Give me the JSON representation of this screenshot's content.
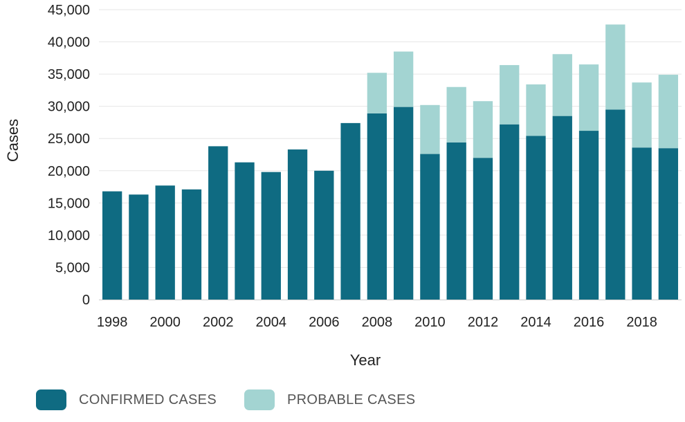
{
  "chart_data": {
    "type": "bar",
    "stacked": true,
    "xlabel": "Year",
    "ylabel": "Cases",
    "ylim": [
      0,
      45000
    ],
    "yticks": [
      0,
      5000,
      10000,
      15000,
      20000,
      25000,
      30000,
      35000,
      40000,
      45000
    ],
    "ytick_labels": [
      "0",
      "5,000",
      "10,000",
      "15,000",
      "20,000",
      "25,000",
      "30,000",
      "35,000",
      "40,000",
      "45,000"
    ],
    "categories": [
      1998,
      1999,
      2000,
      2001,
      2002,
      2003,
      2004,
      2005,
      2006,
      2007,
      2008,
      2009,
      2010,
      2011,
      2012,
      2013,
      2014,
      2015,
      2016,
      2017,
      2018,
      2019
    ],
    "xtick_labels": [
      "1998",
      "2000",
      "2002",
      "2004",
      "2006",
      "2008",
      "2010",
      "2012",
      "2014",
      "2016",
      "2018"
    ],
    "series": [
      {
        "name": "CONFIRMED CASES",
        "color": "#0f6b82",
        "values": [
          16800,
          16300,
          17700,
          17100,
          23800,
          21300,
          19800,
          23300,
          20000,
          27400,
          28900,
          29900,
          22600,
          24400,
          22000,
          27200,
          25400,
          28500,
          26200,
          29500,
          23600,
          23500
        ]
      },
      {
        "name": "PROBABLE CASES",
        "color": "#a3d4d2",
        "values": [
          0,
          0,
          0,
          0,
          0,
          0,
          0,
          0,
          0,
          0,
          6300,
          8600,
          7600,
          8600,
          8800,
          9200,
          8000,
          9600,
          10300,
          13200,
          10100,
          11400
        ]
      }
    ],
    "grid": true,
    "legend_position": "bottom-left"
  },
  "legend": {
    "items": [
      {
        "label": "CONFIRMED CASES",
        "color": "#0f6b82"
      },
      {
        "label": "PROBABLE CASES",
        "color": "#a3d4d2"
      }
    ]
  }
}
